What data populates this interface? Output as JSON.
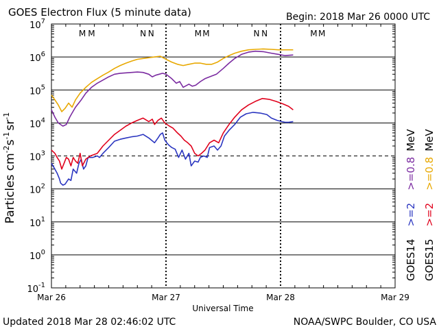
{
  "chart_data": {
    "type": "line",
    "title": "GOES Electron Flux (5 minute data)",
    "begin_label": "Begin: 2018 Mar 26 0000 UTC",
    "xlabel": "Universal Time",
    "x_unit": "days since 2018 Mar 26 0000 UTC",
    "xlim": [
      0,
      3
    ],
    "x_ticks": [
      {
        "value": 0,
        "label": "Mar 26"
      },
      {
        "value": 1,
        "label": "Mar 27"
      },
      {
        "value": 2,
        "label": "Mar 28"
      },
      {
        "value": 3,
        "label": "Mar 29"
      }
    ],
    "ylabel": {
      "base": "Particles cm",
      "e1": "-2",
      "mid1": "s",
      "e2": "-1",
      "mid2": "sr",
      "e3": "-1"
    },
    "yscale": "log",
    "ylim_exponent": [
      -1,
      7
    ],
    "y_ticks": [
      {
        "exp": 7,
        "label": "7"
      },
      {
        "exp": 6,
        "label": "6"
      },
      {
        "exp": 5,
        "label": "5"
      },
      {
        "exp": 4,
        "label": "4"
      },
      {
        "exp": 3,
        "label": "3"
      },
      {
        "exp": 2,
        "label": "2"
      },
      {
        "exp": 1,
        "label": "1"
      },
      {
        "exp": 0,
        "label": "0"
      },
      {
        "exp": -1,
        "label": "-1"
      }
    ],
    "tick_base": "10",
    "threshold_line_exp": 3,
    "mn_markers": [
      {
        "x": 0.27,
        "label": "M",
        "color": "#2a35c0"
      },
      {
        "x": 0.35,
        "label": "M",
        "color": "#e0001b"
      },
      {
        "x": 0.8,
        "label": "N",
        "color": "#2a35c0"
      },
      {
        "x": 0.87,
        "label": "N",
        "color": "#e0001b"
      },
      {
        "x": 1.28,
        "label": "M",
        "color": "#2a35c0"
      },
      {
        "x": 1.35,
        "label": "M",
        "color": "#e0001b"
      },
      {
        "x": 1.79,
        "label": "N",
        "color": "#2a35c0"
      },
      {
        "x": 1.86,
        "label": "N",
        "color": "#e0001b"
      },
      {
        "x": 2.29,
        "label": "M",
        "color": "#2a35c0"
      },
      {
        "x": 2.36,
        "label": "M",
        "color": "#e0001b"
      }
    ],
    "legend": [
      {
        "label": "GOES14",
        "color": "#000000"
      },
      {
        "label": ">=2",
        "color": "#2a35c0"
      },
      {
        "label": ">=0.8",
        "color": "#7a2aa0"
      },
      {
        "label": "MeV",
        "color": "#000000"
      },
      {
        "label": "GOES15",
        "color": "#000000"
      },
      {
        "label": ">=2",
        "color": "#e0001b"
      },
      {
        "label": ">=0.8",
        "color": "#e8a800"
      },
      {
        "label": "MeV",
        "color": "#000000"
      }
    ],
    "series": [
      {
        "name": "GOES14 >=2 MeV",
        "color": "#2a35c0",
        "points": [
          [
            0,
            600
          ],
          [
            0.03,
            400
          ],
          [
            0.05,
            300
          ],
          [
            0.07,
            200
          ],
          [
            0.08,
            150
          ],
          [
            0.1,
            130
          ],
          [
            0.12,
            140
          ],
          [
            0.15,
            200
          ],
          [
            0.17,
            180
          ],
          [
            0.19,
            400
          ],
          [
            0.22,
            300
          ],
          [
            0.24,
            600
          ],
          [
            0.26,
            800
          ],
          [
            0.28,
            400
          ],
          [
            0.3,
            500
          ],
          [
            0.32,
            900
          ],
          [
            0.36,
            900
          ],
          [
            0.4,
            1000
          ],
          [
            0.42,
            900
          ],
          [
            0.45,
            1200
          ],
          [
            0.5,
            1800
          ],
          [
            0.55,
            2800
          ],
          [
            0.6,
            3200
          ],
          [
            0.65,
            3500
          ],
          [
            0.7,
            3800
          ],
          [
            0.75,
            4000
          ],
          [
            0.8,
            4500
          ],
          [
            0.85,
            3500
          ],
          [
            0.9,
            2500
          ],
          [
            0.93,
            3500
          ],
          [
            0.95,
            4500
          ],
          [
            0.97,
            5000
          ],
          [
            0.99,
            3000
          ],
          [
            1.02,
            2200
          ],
          [
            1.05,
            1800
          ],
          [
            1.08,
            1600
          ],
          [
            1.11,
            900
          ],
          [
            1.14,
            1500
          ],
          [
            1.17,
            800
          ],
          [
            1.2,
            1200
          ],
          [
            1.22,
            500
          ],
          [
            1.25,
            700
          ],
          [
            1.28,
            650
          ],
          [
            1.3,
            900
          ],
          [
            1.33,
            1000
          ],
          [
            1.36,
            900
          ],
          [
            1.38,
            1800
          ],
          [
            1.42,
            2000
          ],
          [
            1.45,
            1500
          ],
          [
            1.48,
            2000
          ],
          [
            1.51,
            4000
          ],
          [
            1.55,
            6000
          ],
          [
            1.6,
            9000
          ],
          [
            1.65,
            15000
          ],
          [
            1.7,
            19000
          ],
          [
            1.76,
            21000
          ],
          [
            1.82,
            20000
          ],
          [
            1.88,
            18000
          ],
          [
            1.92,
            14000
          ],
          [
            1.97,
            12000
          ],
          [
            2.01,
            11000
          ],
          [
            2.04,
            10500
          ],
          [
            2.07,
            10500
          ],
          [
            2.11,
            11000
          ]
        ]
      },
      {
        "name": "GOES14 >=0.8 MeV",
        "color": "#7a2aa0",
        "points": [
          [
            0,
            25000
          ],
          [
            0.03,
            15000
          ],
          [
            0.06,
            10000
          ],
          [
            0.1,
            8000
          ],
          [
            0.13,
            9000
          ],
          [
            0.16,
            15000
          ],
          [
            0.18,
            20000
          ],
          [
            0.21,
            30000
          ],
          [
            0.26,
            50000
          ],
          [
            0.3,
            80000
          ],
          [
            0.35,
            120000
          ],
          [
            0.4,
            160000
          ],
          [
            0.45,
            200000
          ],
          [
            0.5,
            250000
          ],
          [
            0.55,
            300000
          ],
          [
            0.6,
            320000
          ],
          [
            0.65,
            330000
          ],
          [
            0.7,
            340000
          ],
          [
            0.75,
            350000
          ],
          [
            0.8,
            340000
          ],
          [
            0.85,
            300000
          ],
          [
            0.88,
            250000
          ],
          [
            0.91,
            280000
          ],
          [
            0.94,
            300000
          ],
          [
            0.97,
            320000
          ],
          [
            1.0,
            300000
          ],
          [
            1.05,
            220000
          ],
          [
            1.09,
            160000
          ],
          [
            1.12,
            180000
          ],
          [
            1.15,
            120000
          ],
          [
            1.2,
            150000
          ],
          [
            1.23,
            130000
          ],
          [
            1.26,
            140000
          ],
          [
            1.3,
            180000
          ],
          [
            1.34,
            220000
          ],
          [
            1.38,
            250000
          ],
          [
            1.44,
            300000
          ],
          [
            1.5,
            450000
          ],
          [
            1.55,
            650000
          ],
          [
            1.6,
            900000
          ],
          [
            1.66,
            1200000
          ],
          [
            1.72,
            1400000
          ],
          [
            1.78,
            1500000
          ],
          [
            1.85,
            1450000
          ],
          [
            1.92,
            1300000
          ],
          [
            1.98,
            1200000
          ],
          [
            2.04,
            1100000
          ],
          [
            2.11,
            1150000
          ]
        ]
      },
      {
        "name": "GOES15 >=2 MeV",
        "color": "#e0001b",
        "points": [
          [
            0,
            1500
          ],
          [
            0.03,
            1200
          ],
          [
            0.05,
            900
          ],
          [
            0.07,
            700
          ],
          [
            0.09,
            400
          ],
          [
            0.11,
            600
          ],
          [
            0.13,
            900
          ],
          [
            0.15,
            800
          ],
          [
            0.17,
            500
          ],
          [
            0.19,
            900
          ],
          [
            0.21,
            700
          ],
          [
            0.23,
            600
          ],
          [
            0.25,
            1200
          ],
          [
            0.27,
            500
          ],
          [
            0.3,
            800
          ],
          [
            0.34,
            1000
          ],
          [
            0.4,
            1200
          ],
          [
            0.45,
            2000
          ],
          [
            0.5,
            3000
          ],
          [
            0.55,
            4500
          ],
          [
            0.6,
            6000
          ],
          [
            0.65,
            8000
          ],
          [
            0.7,
            10000
          ],
          [
            0.75,
            12000
          ],
          [
            0.8,
            14000
          ],
          [
            0.85,
            11000
          ],
          [
            0.88,
            13000
          ],
          [
            0.9,
            9000
          ],
          [
            0.93,
            12000
          ],
          [
            0.96,
            14000
          ],
          [
            0.99,
            10000
          ],
          [
            1.03,
            8000
          ],
          [
            1.06,
            7000
          ],
          [
            1.1,
            5000
          ],
          [
            1.13,
            4000
          ],
          [
            1.16,
            3000
          ],
          [
            1.19,
            2500
          ],
          [
            1.22,
            2000
          ],
          [
            1.25,
            1200
          ],
          [
            1.28,
            1000
          ],
          [
            1.31,
            1200
          ],
          [
            1.34,
            1500
          ],
          [
            1.38,
            2500
          ],
          [
            1.42,
            3000
          ],
          [
            1.46,
            2500
          ],
          [
            1.5,
            5000
          ],
          [
            1.55,
            9000
          ],
          [
            1.6,
            15000
          ],
          [
            1.66,
            25000
          ],
          [
            1.72,
            35000
          ],
          [
            1.78,
            45000
          ],
          [
            1.84,
            55000
          ],
          [
            1.9,
            52000
          ],
          [
            1.96,
            45000
          ],
          [
            2.02,
            38000
          ],
          [
            2.07,
            32000
          ],
          [
            2.11,
            25000
          ]
        ]
      },
      {
        "name": "GOES15 >=0.8 MeV",
        "color": "#e8a800",
        "points": [
          [
            0,
            70000
          ],
          [
            0.03,
            50000
          ],
          [
            0.06,
            35000
          ],
          [
            0.09,
            22000
          ],
          [
            0.12,
            28000
          ],
          [
            0.15,
            40000
          ],
          [
            0.18,
            30000
          ],
          [
            0.21,
            50000
          ],
          [
            0.25,
            80000
          ],
          [
            0.3,
            120000
          ],
          [
            0.35,
            170000
          ],
          [
            0.4,
            220000
          ],
          [
            0.45,
            280000
          ],
          [
            0.5,
            350000
          ],
          [
            0.55,
            450000
          ],
          [
            0.6,
            550000
          ],
          [
            0.65,
            650000
          ],
          [
            0.7,
            750000
          ],
          [
            0.75,
            850000
          ],
          [
            0.8,
            900000
          ],
          [
            0.85,
            950000
          ],
          [
            0.9,
            1000000
          ],
          [
            0.95,
            1050000
          ],
          [
            1.0,
            850000
          ],
          [
            1.05,
            700000
          ],
          [
            1.1,
            600000
          ],
          [
            1.15,
            550000
          ],
          [
            1.2,
            600000
          ],
          [
            1.25,
            650000
          ],
          [
            1.3,
            650000
          ],
          [
            1.35,
            600000
          ],
          [
            1.4,
            600000
          ],
          [
            1.45,
            700000
          ],
          [
            1.5,
            900000
          ],
          [
            1.55,
            1100000
          ],
          [
            1.6,
            1300000
          ],
          [
            1.66,
            1500000
          ],
          [
            1.72,
            1650000
          ],
          [
            1.78,
            1700000
          ],
          [
            1.85,
            1750000
          ],
          [
            1.92,
            1700000
          ],
          [
            1.98,
            1650000
          ],
          [
            2.04,
            1650000
          ],
          [
            2.11,
            1650000
          ]
        ]
      }
    ]
  },
  "footer": {
    "updated": "Updated 2018 Mar 28 02:46:02 UTC",
    "credit": "NOAA/SWPC Boulder, CO USA"
  }
}
